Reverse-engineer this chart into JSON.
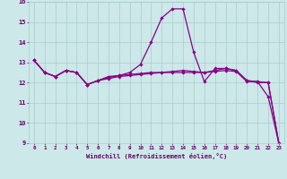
{
  "xlabel": "Windchill (Refroidissement éolien,°C)",
  "bg_color": "#cce8e8",
  "grid_color": "#aacccc",
  "line_color": "#880088",
  "x": [
    0,
    1,
    2,
    3,
    4,
    5,
    6,
    7,
    8,
    9,
    10,
    11,
    12,
    13,
    14,
    15,
    16,
    17,
    18,
    19,
    20,
    21,
    22,
    23
  ],
  "series1": [
    13.1,
    12.5,
    12.3,
    12.6,
    12.5,
    11.9,
    12.1,
    12.25,
    12.35,
    12.5,
    12.9,
    14.0,
    15.2,
    15.65,
    15.65,
    13.5,
    12.05,
    12.7,
    12.7,
    12.6,
    12.1,
    12.05,
    11.3,
    9.0
  ],
  "series2": [
    13.1,
    12.5,
    12.3,
    12.6,
    12.5,
    11.9,
    12.1,
    12.2,
    12.3,
    12.35,
    12.4,
    12.45,
    12.5,
    12.55,
    12.6,
    12.55,
    12.5,
    12.55,
    12.6,
    12.55,
    12.05,
    12.05,
    12.0,
    9.0
  ],
  "series3": [
    13.1,
    12.5,
    12.3,
    12.6,
    12.5,
    11.9,
    12.1,
    12.3,
    12.35,
    12.4,
    12.45,
    12.5,
    12.5,
    12.5,
    12.5,
    12.5,
    12.5,
    12.6,
    12.7,
    12.6,
    12.1,
    12.0,
    12.0,
    9.0
  ],
  "ylim": [
    9,
    16
  ],
  "xlim": [
    -0.5,
    23.5
  ],
  "yticks": [
    9,
    10,
    11,
    12,
    13,
    14,
    15,
    16
  ],
  "xticks": [
    0,
    1,
    2,
    3,
    4,
    5,
    6,
    7,
    8,
    9,
    10,
    11,
    12,
    13,
    14,
    15,
    16,
    17,
    18,
    19,
    20,
    21,
    22,
    23
  ],
  "xtick_labels": [
    "0",
    "1",
    "2",
    "3",
    "4",
    "5",
    "6",
    "7",
    "8",
    "9",
    "10",
    "11",
    "12",
    "13",
    "14",
    "15",
    "16",
    "17",
    "18",
    "19",
    "20",
    "21",
    "22",
    "23"
  ]
}
